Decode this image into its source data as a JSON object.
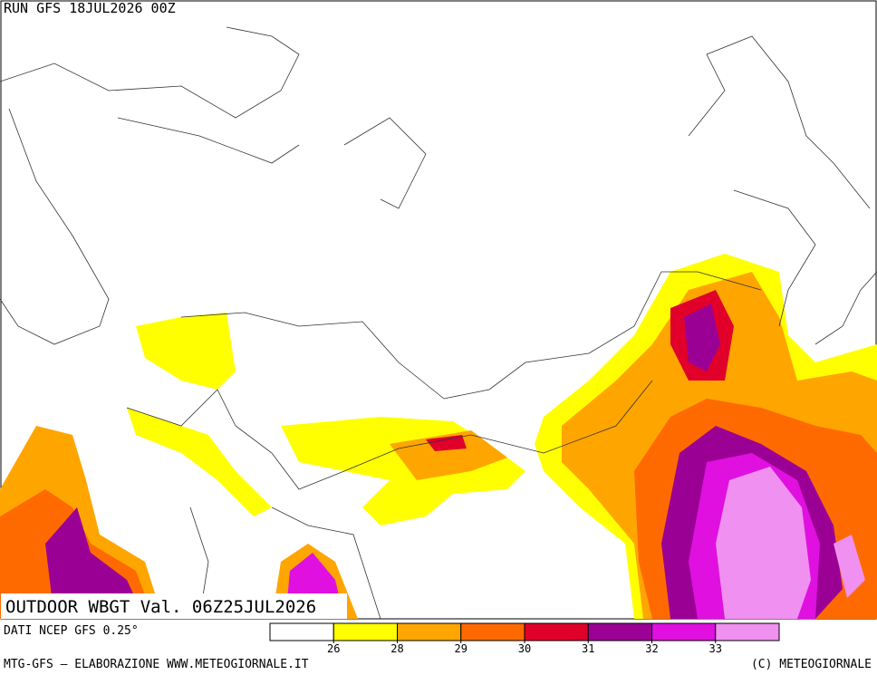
{
  "header": {
    "run": "RUN GFS 18JUL2026 00Z"
  },
  "map_title": "OUTDOOR WBGT Val. 06Z25JUL2026",
  "source": "DATI NCEP GFS 0.25°",
  "footer_left": "MTG-GFS – ELABORAZIONE WWW.METEOGIORNALE.IT",
  "footer_right": "(C) METEOGIORNALE",
  "legend": {
    "colors": [
      "#ffffff",
      "#ffff00",
      "#ffa500",
      "#ff6a00",
      "#e0002a",
      "#9b0095",
      "#e010e0",
      "#f090f0"
    ],
    "ticks": [
      26,
      28,
      29,
      30,
      31,
      32,
      33
    ]
  }
}
